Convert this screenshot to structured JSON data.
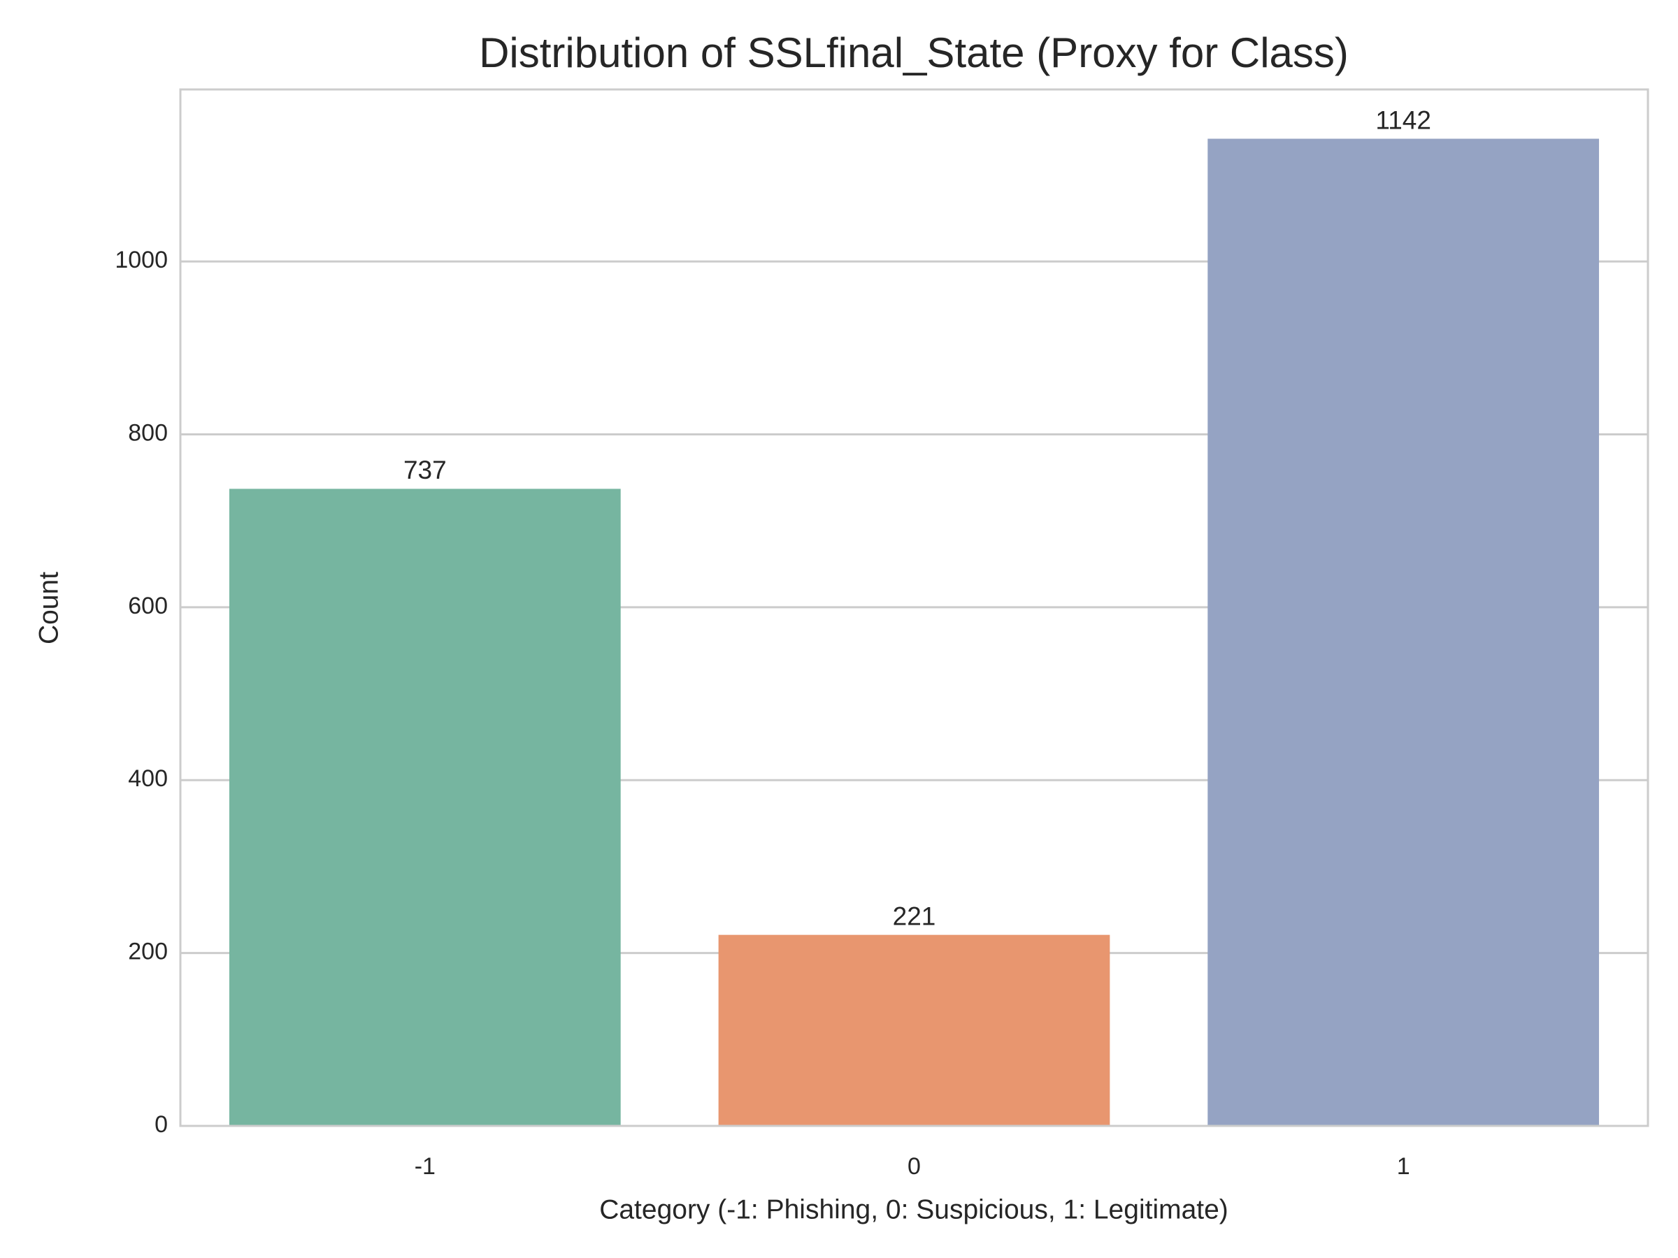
{
  "chart_data": {
    "type": "bar",
    "title": "Distribution of SSLfinal_State (Proxy for Class)",
    "xlabel": "Category (-1: Phishing, 0: Suspicious, 1: Legitimate)",
    "ylabel": "Count",
    "categories": [
      "-1",
      "0",
      "1"
    ],
    "values": [
      737,
      221,
      1142
    ],
    "colors": [
      "#76b5a0",
      "#e8966f",
      "#95a3c3"
    ],
    "ylim": [
      0,
      1199
    ],
    "yticks": [
      0,
      200,
      400,
      600,
      800,
      1000
    ],
    "grid": true
  }
}
